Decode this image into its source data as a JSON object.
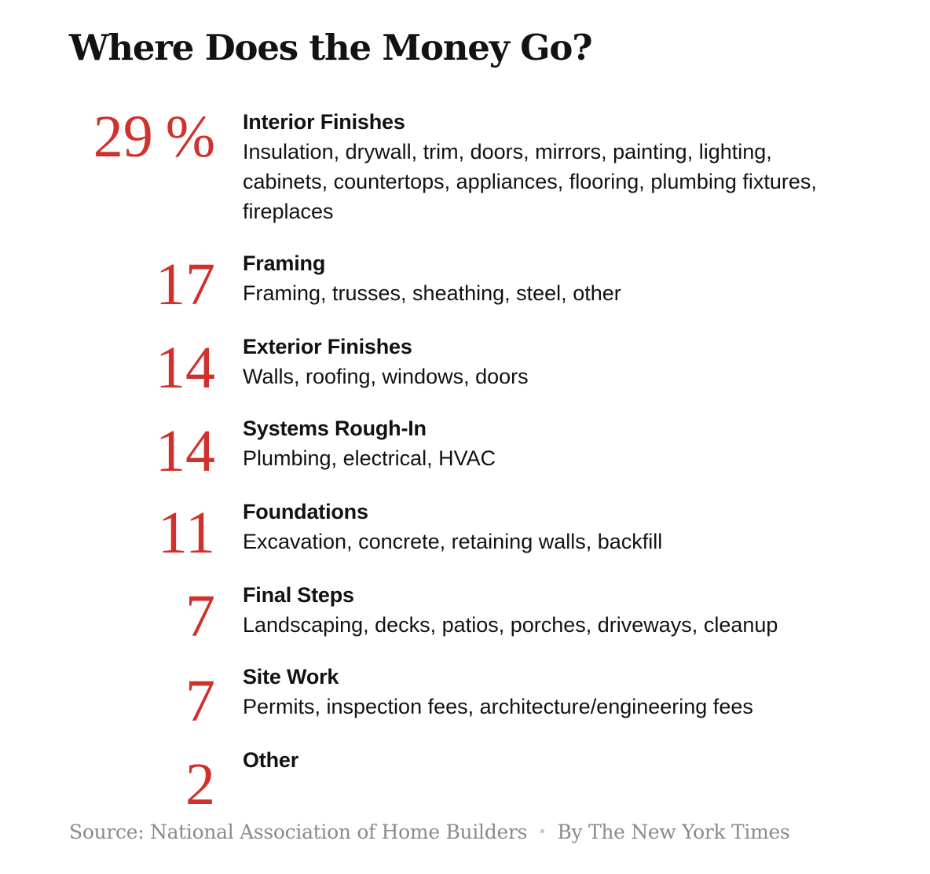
{
  "title": "Where Does the Money Go?",
  "chart_data": {
    "type": "table",
    "title": "Where Does the Money Go?",
    "unit": "%",
    "rows": [
      {
        "value": 29,
        "category": "Interior Finishes",
        "description": "Insulation, drywall, trim, doors, mirrors, painting, lighting, cabinets, countertops, appliances, flooring, plumbing fixtures, fireplaces"
      },
      {
        "value": 17,
        "category": "Framing",
        "description": "Framing, trusses, sheathing, steel, other"
      },
      {
        "value": 14,
        "category": "Exterior Finishes",
        "description": "Walls, roofing, windows, doors"
      },
      {
        "value": 14,
        "category": "Systems Rough-In",
        "description": "Plumbing, electrical, HVAC"
      },
      {
        "value": 11,
        "category": "Foundations",
        "description": "Excavation, concrete, retaining walls, backfill"
      },
      {
        "value": 7,
        "category": "Final Steps",
        "description": "Landscaping, decks, patios, porches, driveways, cleanup"
      },
      {
        "value": 7,
        "category": "Site Work",
        "description": "Permits, inspection fees, architecture/engineering fees"
      },
      {
        "value": 2,
        "category": "Other",
        "description": ""
      }
    ]
  },
  "footer": {
    "source": "Source: National Association of Home Builders",
    "separator": "•",
    "byline": "By The New York Times"
  },
  "colors": {
    "accent": "#d0312d",
    "text": "#121212",
    "muted": "#8a8a8a"
  }
}
